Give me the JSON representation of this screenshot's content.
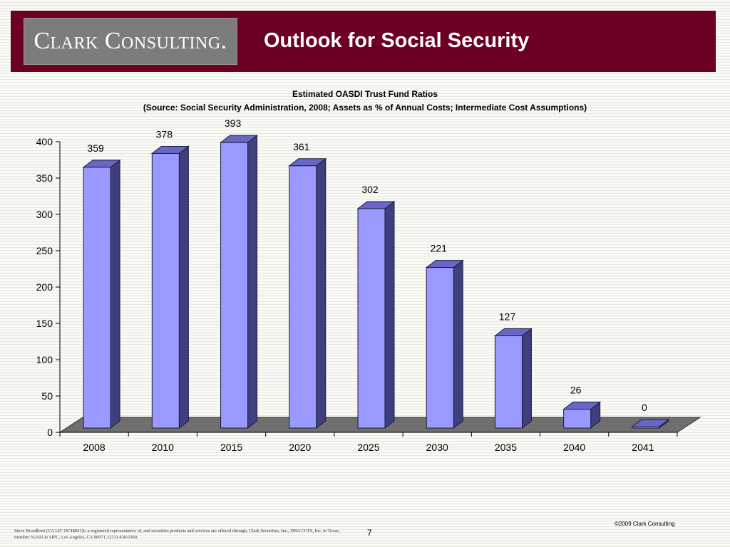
{
  "header": {
    "logo_text": "Clark Consulting.",
    "title": "Outlook for Social Security"
  },
  "chart_data": {
    "type": "bar",
    "title": "Estimated OASDI Trust Fund Ratios",
    "subtitle": "(Source: Social Security Administration, 2008; Assets as % of Annual Costs; Intermediate Cost Assumptions)",
    "categories": [
      "2008",
      "2010",
      "2015",
      "2020",
      "2025",
      "2030",
      "2035",
      "2040",
      "2041"
    ],
    "values": [
      359,
      378,
      393,
      361,
      302,
      221,
      127,
      26,
      0
    ],
    "ylim": [
      0,
      400
    ],
    "yticks": [
      "0",
      "50",
      "100",
      "150",
      "200",
      "250",
      "300",
      "350",
      "400"
    ],
    "xlabel": "",
    "ylabel": "",
    "grid": false,
    "style": "3d",
    "colors": {
      "front": "#9999ff",
      "side": "#3f3f7e",
      "top": "#6767c8",
      "floor": "#6f6f6f"
    }
  },
  "footer": {
    "disclaimer": "Steve Broadbent (CA LIC OC48841)is a registered representative of, and securities products and services are offered through, Clark Securities, Inc., DBA CCFS, Inc. in Texas, member NASD & SIPC, Los Angeles, CA 90071, (213) 438-6300.",
    "page_number": "7",
    "copyright": "©2009 Clark Consulting"
  }
}
